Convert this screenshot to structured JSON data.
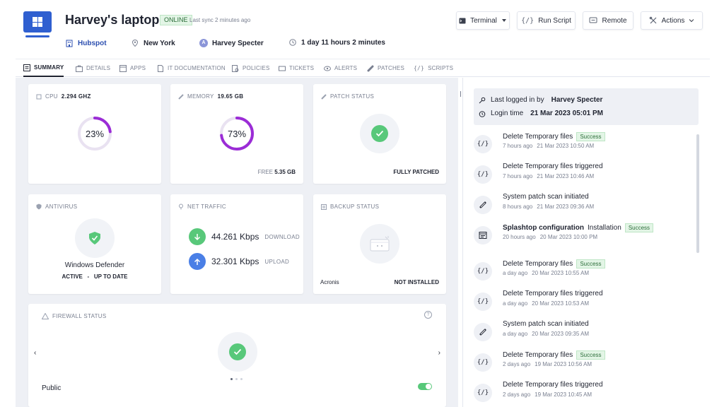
{
  "header": {
    "device_name": "Harvey's laptop",
    "status": "ONLINE",
    "last_sync": "Last sync 2 minutes ago",
    "company": "Hubspot",
    "location": "New York",
    "user_initial": "A",
    "user": "Harvey Specter",
    "uptime": "1 day 11 hours 2 minutes",
    "buttons": {
      "terminal": "Terminal",
      "run_script": "Run Script",
      "remote": "Remote",
      "actions": "Actions"
    }
  },
  "tabs": [
    {
      "label": "SUMMARY"
    },
    {
      "label": "DETAILS"
    },
    {
      "label": "APPS"
    },
    {
      "label": "IT DOCUMENTATION"
    },
    {
      "label": "POLICIES"
    },
    {
      "label": "TICKETS"
    },
    {
      "label": "ALERTS"
    },
    {
      "label": "PATCHES"
    },
    {
      "label": "SCRIPTS"
    }
  ],
  "cards": {
    "cpu": {
      "label": "CPU",
      "value": "2.294 GHz",
      "percent_text": "23%",
      "percent": 23
    },
    "memory": {
      "label": "MEMORY",
      "value": "19.65 GB",
      "percent_text": "73%",
      "percent": 73,
      "free_label": "FREE",
      "free_value": "5.35 GB"
    },
    "patch": {
      "label": "PATCH STATUS",
      "status": "FULLY PATCHED"
    },
    "antivirus": {
      "label": "ANTIVIRUS",
      "name": "Windows Defender",
      "state": "ACTIVE",
      "separator": "-",
      "update": "UP TO DATE"
    },
    "net": {
      "label": "NET TRAFFIC",
      "download_value": "44.261 Kbps",
      "download_label": "DOWNLOAD",
      "upload_value": "32.301 Kbps",
      "upload_label": "UPLOAD"
    },
    "backup": {
      "label": "BACKUP STATUS",
      "provider": "Acronis",
      "status": "NOT INSTALLED"
    },
    "firewall": {
      "label": "FIREWALL STATUS",
      "help": "?",
      "prev": "‹",
      "next": "›",
      "profile": "Public",
      "enabled": true
    }
  },
  "colors": {
    "accent_purple": "#9b2cd6",
    "success_green": "#58c87a",
    "primary_blue": "#2f5fd0",
    "upload_blue": "#4a7fe6"
  },
  "login": {
    "last_logged_label": "Last logged in by",
    "last_logged_user": "Harvey Specter",
    "login_time_label": "Login time",
    "login_time": "21 Mar 2023 05:01 PM"
  },
  "activities": [
    {
      "icon": "{/}",
      "title": "Delete Temporary files",
      "bold": "",
      "badge": "Success",
      "ago": "7 hours ago",
      "date": "21 Mar 2023 10:50 AM"
    },
    {
      "icon": "{/}",
      "title": "Delete Temporary files triggered",
      "bold": "",
      "badge": "",
      "ago": "7 hours ago",
      "date": "21 Mar 2023 10:46 AM"
    },
    {
      "icon": "patch",
      "title": "System patch scan initiated",
      "bold": "",
      "badge": "",
      "ago": "8 hours ago",
      "date": "21 Mar 2023 09:36 AM"
    },
    {
      "icon": "app",
      "title": "Installation",
      "bold": "Splashtop configuration",
      "badge": "Success",
      "ago": "20 hours ago",
      "date": "20 Mar 2023 10:00 PM"
    },
    {
      "icon": "{/}",
      "title": "Delete Temporary files",
      "bold": "",
      "badge": "Success",
      "ago": "a day ago",
      "date": "20 Mar 2023 10:55 AM"
    },
    {
      "icon": "{/}",
      "title": "Delete Temporary files triggered",
      "bold": "",
      "badge": "",
      "ago": "a day ago",
      "date": "20 Mar 2023 10:53 AM"
    },
    {
      "icon": "patch",
      "title": "System patch scan initiated",
      "bold": "",
      "badge": "",
      "ago": "a day ago",
      "date": "20 Mar 2023 09:35 AM"
    },
    {
      "icon": "{/}",
      "title": "Delete Temporary files",
      "bold": "",
      "badge": "Success",
      "ago": "2 days ago",
      "date": "19 Mar 2023 10:56 AM"
    },
    {
      "icon": "{/}",
      "title": "Delete Temporary files triggered",
      "bold": "",
      "badge": "",
      "ago": "2 days ago",
      "date": "19 Mar 2023 10:45 AM"
    }
  ]
}
